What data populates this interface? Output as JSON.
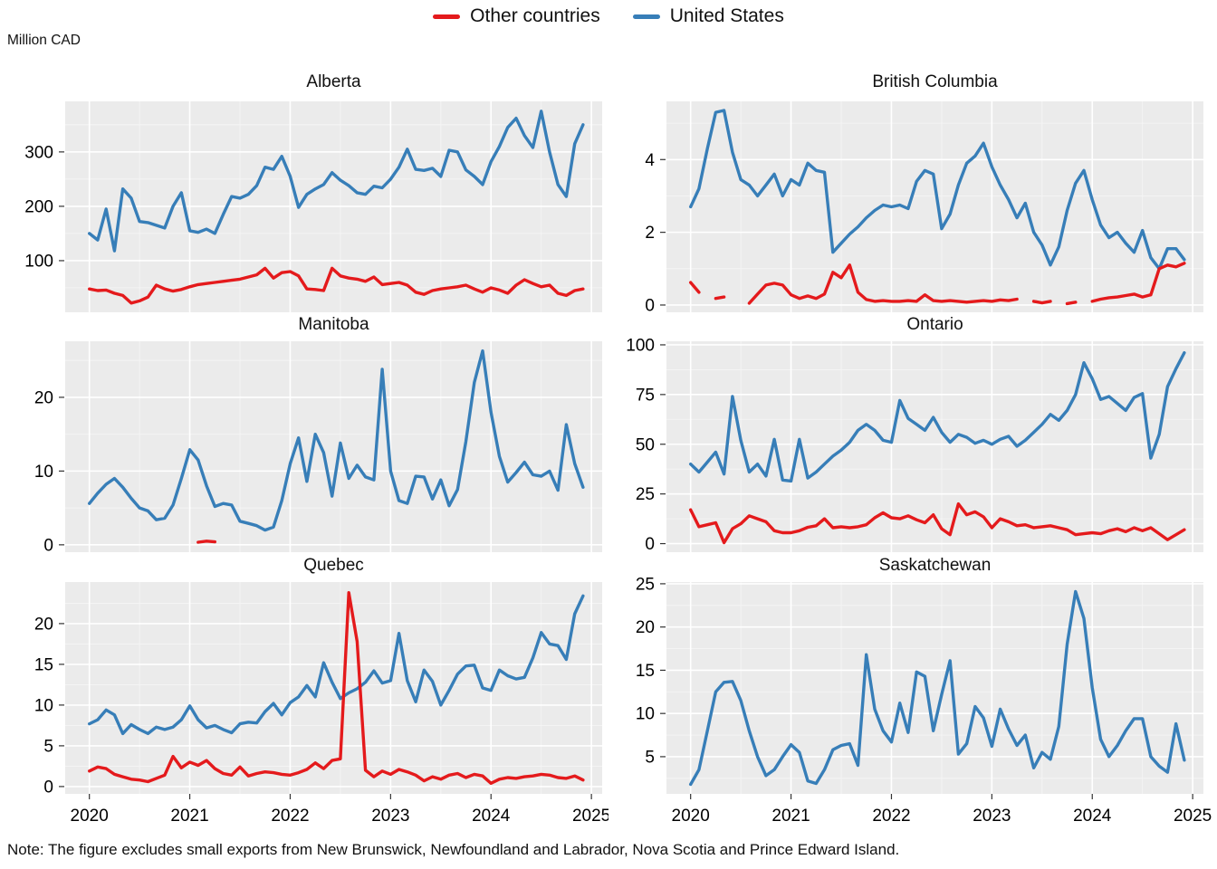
{
  "legend": {
    "items": [
      {
        "label": "Other countries",
        "color": "#E41A1C"
      },
      {
        "label": "United States",
        "color": "#377EB8"
      }
    ]
  },
  "y_axis_unit": "Million CAD",
  "note": "Note: The figure excludes small exports from New Brunswick, Newfoundland and Labrador, Nova Scotia and Prince Edward Island.",
  "chart_data": {
    "type": "line",
    "x": {
      "start_year": 2020,
      "months": 60,
      "tick_labels": [
        "2020",
        "2021",
        "2022",
        "2023",
        "2024",
        "2025"
      ],
      "frequency": "monthly"
    },
    "series_names": [
      "Other countries",
      "United States"
    ],
    "colors": {
      "other": "#E41A1C",
      "us": "#377EB8"
    },
    "grid": {
      "panel_bg": "#EBEBEB",
      "major": "#FFFFFF",
      "minor": "#F5F5F5"
    },
    "legend_position": "top-center",
    "panels": [
      {
        "title": "Alberta",
        "ylim": [
          5,
          393
        ],
        "yticks": [
          100,
          200,
          300
        ],
        "ytick_labels": [
          "100",
          "200",
          "300"
        ],
        "us": [
          150,
          138,
          195,
          118,
          232,
          215,
          172,
          170,
          165,
          160,
          200,
          225,
          155,
          152,
          158,
          150,
          185,
          218,
          215,
          222,
          238,
          272,
          268,
          292,
          255,
          198,
          222,
          232,
          240,
          262,
          248,
          238,
          225,
          222,
          237,
          234,
          250,
          272,
          305,
          268,
          266,
          270,
          255,
          303,
          300,
          267,
          255,
          240,
          282,
          310,
          345,
          362,
          330,
          308,
          375,
          300,
          240,
          218,
          315,
          350
        ],
        "other": [
          48,
          45,
          46,
          40,
          36,
          22,
          26,
          33,
          55,
          48,
          44,
          47,
          52,
          56,
          58,
          60,
          62,
          64,
          66,
          70,
          74,
          86,
          68,
          78,
          80,
          72,
          48,
          47,
          45,
          86,
          72,
          68,
          66,
          62,
          70,
          56,
          58,
          60,
          55,
          42,
          38,
          45,
          48,
          50,
          52,
          55,
          48,
          42,
          50,
          46,
          40,
          55,
          65,
          58,
          52,
          55,
          40,
          36,
          45,
          48
        ]
      },
      {
        "title": "British Columbia",
        "ylim": [
          -0.2,
          5.6
        ],
        "yticks": [
          0,
          2,
          4
        ],
        "ytick_labels": [
          "0",
          "2",
          "4"
        ],
        "us": [
          2.7,
          3.2,
          4.3,
          5.3,
          5.35,
          4.2,
          3.45,
          3.3,
          3.0,
          3.3,
          3.6,
          3.0,
          3.45,
          3.3,
          3.9,
          3.7,
          3.65,
          1.45,
          1.7,
          1.95,
          2.15,
          2.4,
          2.6,
          2.75,
          2.7,
          2.75,
          2.65,
          3.4,
          3.7,
          3.6,
          2.1,
          2.5,
          3.3,
          3.9,
          4.1,
          4.45,
          3.8,
          3.3,
          2.9,
          2.4,
          2.8,
          2.0,
          1.65,
          1.1,
          1.6,
          2.6,
          3.35,
          3.7,
          2.9,
          2.2,
          1.85,
          2.0,
          1.7,
          1.45,
          2.05,
          1.3,
          1.0,
          1.55,
          1.55,
          1.25
        ],
        "other": [
          0.62,
          0.35,
          null,
          0.18,
          0.22,
          null,
          null,
          0.05,
          0.3,
          0.55,
          0.6,
          0.55,
          0.28,
          0.18,
          0.25,
          0.18,
          0.3,
          0.9,
          0.75,
          1.1,
          0.35,
          0.15,
          0.1,
          0.12,
          0.1,
          0.1,
          0.12,
          0.1,
          0.28,
          0.12,
          0.1,
          0.12,
          0.1,
          0.08,
          0.1,
          0.12,
          0.1,
          0.14,
          0.12,
          0.16,
          null,
          0.1,
          0.06,
          0.1,
          null,
          0.04,
          0.08,
          null,
          0.1,
          0.16,
          0.2,
          0.22,
          0.26,
          0.3,
          0.22,
          0.28,
          1.0,
          1.1,
          1.05,
          1.15
        ]
      },
      {
        "title": "Manitoba",
        "ylim": [
          -1,
          27.6
        ],
        "yticks": [
          0,
          10,
          20
        ],
        "ytick_labels": [
          "0",
          "10",
          "20"
        ],
        "us": [
          5.6,
          7.0,
          8.2,
          9.0,
          7.8,
          6.3,
          5.0,
          4.6,
          3.4,
          3.6,
          5.4,
          9.0,
          12.9,
          11.5,
          8.0,
          5.2,
          5.6,
          5.4,
          3.2,
          2.9,
          2.6,
          2.0,
          2.4,
          6.0,
          11.0,
          14.5,
          8.6,
          15.0,
          12.5,
          6.6,
          13.8,
          9.0,
          10.8,
          9.2,
          8.8,
          23.8,
          10.0,
          6.0,
          5.6,
          9.3,
          9.2,
          6.2,
          8.8,
          5.3,
          7.5,
          14.0,
          22.0,
          26.3,
          18.0,
          12.0,
          8.5,
          9.8,
          11.2,
          9.5,
          9.3,
          10.0,
          7.4,
          16.3,
          11.0,
          7.8
        ],
        "other": [
          null,
          null,
          null,
          null,
          null,
          null,
          null,
          null,
          null,
          null,
          null,
          null,
          null,
          0.35,
          0.5,
          0.4,
          null,
          null,
          null,
          null,
          null,
          null,
          null,
          null,
          null,
          null,
          null,
          null,
          null,
          null,
          null,
          null,
          null,
          null,
          null,
          null,
          null,
          null,
          null,
          null,
          null,
          null,
          null,
          null,
          null,
          null,
          null,
          null,
          null,
          null,
          null,
          null,
          null,
          null,
          null,
          null,
          null,
          null,
          null,
          null
        ]
      },
      {
        "title": "Ontario",
        "ylim": [
          -4.3,
          101.8
        ],
        "yticks": [
          0,
          25,
          50,
          75,
          100
        ],
        "ytick_labels": [
          "0",
          "25",
          "50",
          "75",
          "100"
        ],
        "us": [
          40,
          36,
          41,
          46,
          35,
          74,
          52,
          36,
          40,
          34,
          52.5,
          32,
          31.5,
          52.5,
          33,
          36,
          40,
          44,
          47,
          51,
          57,
          60,
          57,
          52,
          51,
          72,
          63,
          60,
          57,
          63.5,
          56,
          51,
          55,
          53.5,
          50.5,
          52,
          50,
          52.5,
          54,
          49,
          52,
          56,
          60,
          65,
          62,
          67,
          75,
          91,
          83,
          72.5,
          74,
          70.5,
          67,
          73.5,
          75.5,
          43,
          55,
          79,
          88,
          96
        ],
        "other": [
          17,
          8.5,
          9.5,
          10.5,
          0.5,
          7.5,
          10,
          14,
          12.5,
          11,
          6.5,
          5.5,
          5.5,
          6.5,
          8.2,
          9,
          12.5,
          8,
          8.5,
          8,
          8.5,
          9.5,
          13,
          15.5,
          13,
          12.5,
          14,
          12,
          10.5,
          14.5,
          7.5,
          4.5,
          20,
          14.5,
          16,
          13.5,
          8,
          12.5,
          11,
          9,
          9.5,
          8,
          8.5,
          9,
          8,
          7,
          4.5,
          5,
          5.5,
          5,
          6.5,
          7.5,
          6,
          8,
          6.5,
          8,
          5,
          2,
          4.5,
          7
        ]
      },
      {
        "title": "Quebec",
        "ylim": [
          -0.9,
          25.1
        ],
        "yticks": [
          0,
          5,
          10,
          15,
          20
        ],
        "ytick_labels": [
          "0",
          "5",
          "10",
          "15",
          "20"
        ],
        "us": [
          7.7,
          8.2,
          9.4,
          8.8,
          6.5,
          7.6,
          7.0,
          6.5,
          7.3,
          7.0,
          7.3,
          8.2,
          9.9,
          8.2,
          7.2,
          7.5,
          7.0,
          6.6,
          7.7,
          7.9,
          7.8,
          9.2,
          10.2,
          8.8,
          10.3,
          11.0,
          12.4,
          11.0,
          15.2,
          12.8,
          10.8,
          11.5,
          12.0,
          12.8,
          14.2,
          12.7,
          13.0,
          18.8,
          13.0,
          10.4,
          14.3,
          12.9,
          10.0,
          11.8,
          13.8,
          14.8,
          14.9,
          12.1,
          11.8,
          14.3,
          13.6,
          13.2,
          13.4,
          15.8,
          18.9,
          17.5,
          17.3,
          15.6,
          21.2,
          23.4
        ],
        "other": [
          1.9,
          2.4,
          2.2,
          1.5,
          1.2,
          0.9,
          0.8,
          0.6,
          1.0,
          1.4,
          3.7,
          2.3,
          3.0,
          2.6,
          3.2,
          2.2,
          1.6,
          1.4,
          2.4,
          1.3,
          1.6,
          1.8,
          1.7,
          1.5,
          1.4,
          1.7,
          2.1,
          2.9,
          2.2,
          3.2,
          3.4,
          23.8,
          17.8,
          2.0,
          1.2,
          1.9,
          1.5,
          2.1,
          1.8,
          1.4,
          0.7,
          1.2,
          0.9,
          1.4,
          1.6,
          1.1,
          1.5,
          1.3,
          0.4,
          0.9,
          1.1,
          1.0,
          1.2,
          1.3,
          1.5,
          1.4,
          1.1,
          1.0,
          1.3,
          0.8
        ]
      },
      {
        "title": "Saskatchewan",
        "ylim": [
          0.7,
          25.2
        ],
        "yticks": [
          5,
          10,
          15,
          20,
          25
        ],
        "ytick_labels": [
          "5",
          "10",
          "15",
          "20",
          "25"
        ],
        "us": [
          1.8,
          3.5,
          8.0,
          12.5,
          13.6,
          13.7,
          11.5,
          8.0,
          5.0,
          2.8,
          3.5,
          5.0,
          6.4,
          5.5,
          2.2,
          1.9,
          3.5,
          5.8,
          6.3,
          6.5,
          4.0,
          16.8,
          10.5,
          8.0,
          6.7,
          11.2,
          7.8,
          14.8,
          14.3,
          8.0,
          12.2,
          16.1,
          5.3,
          6.5,
          10.8,
          9.5,
          6.2,
          10.5,
          8.2,
          6.3,
          7.5,
          3.7,
          5.5,
          4.7,
          8.5,
          18.0,
          24.1,
          21.0,
          13.0,
          7.0,
          5.0,
          6.3,
          8.0,
          9.4,
          9.4,
          5.0,
          3.9,
          3.2,
          8.8,
          4.6
        ],
        "other": []
      }
    ]
  }
}
